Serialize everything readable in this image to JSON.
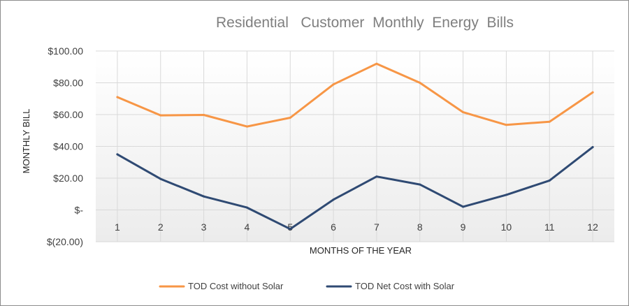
{
  "chart_data": {
    "type": "line",
    "title": "Residential   Customer  Monthly  Energy  Bills",
    "xlabel": "MONTHS OF THE YEAR",
    "ylabel": "MONTHLY BILL",
    "categories": [
      "1",
      "2",
      "3",
      "4",
      "5",
      "6",
      "7",
      "8",
      "9",
      "10",
      "11",
      "12"
    ],
    "ylim": [
      -20,
      100
    ],
    "y_ticks": [
      {
        "value": 100,
        "label": "$100.00"
      },
      {
        "value": 80,
        "label": "$80.00"
      },
      {
        "value": 60,
        "label": "$60.00"
      },
      {
        "value": 40,
        "label": "$40.00"
      },
      {
        "value": 20,
        "label": "$20.00"
      },
      {
        "value": 0,
        "label": "$-"
      },
      {
        "value": -20,
        "label": "$(20.00)"
      }
    ],
    "grid": true,
    "legend_position": "bottom",
    "series": [
      {
        "name": "TOD Cost without Solar",
        "color": "#f79646",
        "values": [
          71,
          59.5,
          59.8,
          52.5,
          58,
          79,
          92,
          80,
          61.5,
          53.5,
          55.5,
          74
        ]
      },
      {
        "name": "TOD Net Cost with Solar",
        "color": "#2f4a73",
        "values": [
          35,
          19.5,
          8.5,
          1.5,
          -12,
          6.5,
          21,
          16,
          2,
          9.5,
          18.5,
          39.5
        ]
      }
    ]
  }
}
